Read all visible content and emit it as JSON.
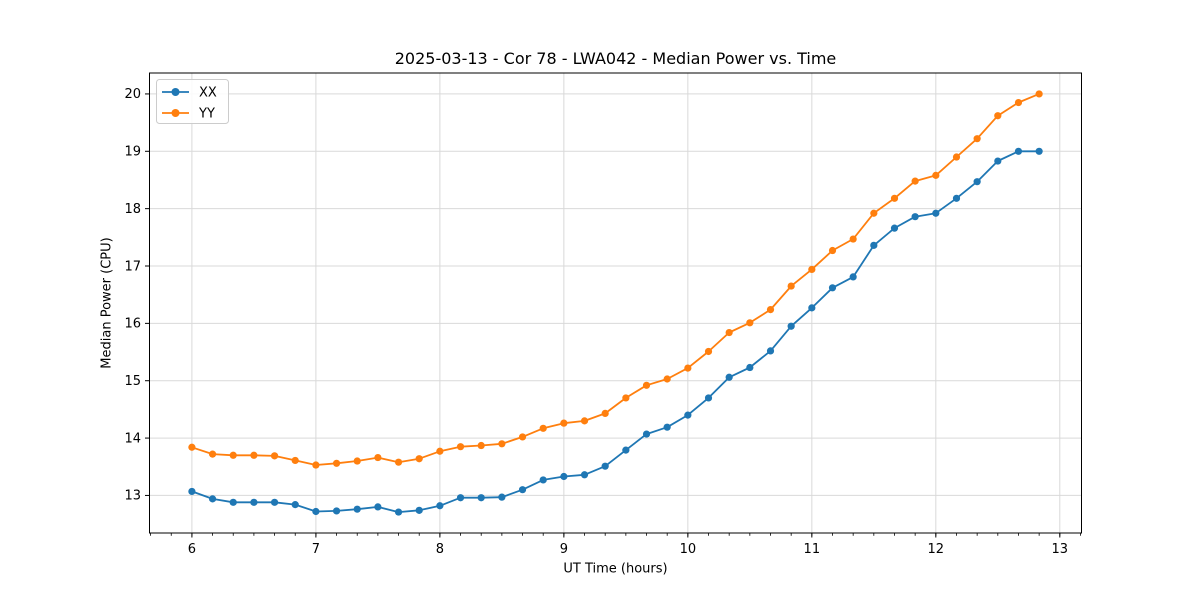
{
  "chart_data": {
    "type": "line",
    "title": "2025-03-13 - Cor 78 - LWA042 - Median Power vs. Time",
    "xlabel": "UT Time (hours)",
    "ylabel": "Median Power (CPU)",
    "xlim": [
      5.658,
      13.175
    ],
    "ylim": [
      12.345,
      20.365
    ],
    "xticks": [
      6,
      7,
      8,
      9,
      10,
      11,
      12,
      13
    ],
    "yticks": [
      13,
      14,
      15,
      16,
      17,
      18,
      19,
      20
    ],
    "x_minor_step": 0.166667,
    "grid": true,
    "legend_position": "upper-left",
    "x": [
      6.0,
      6.1667,
      6.3333,
      6.5,
      6.6667,
      6.8333,
      7.0,
      7.1667,
      7.3333,
      7.5,
      7.6667,
      7.8333,
      8.0,
      8.1667,
      8.3333,
      8.5,
      8.6667,
      8.8333,
      9.0,
      9.1667,
      9.3333,
      9.5,
      9.6667,
      9.8333,
      10.0,
      10.1667,
      10.3333,
      10.5,
      10.6667,
      10.8333,
      11.0,
      11.1667,
      11.3333,
      11.5,
      11.6667,
      11.8333,
      12.0,
      12.1667,
      12.3333,
      12.5,
      12.6667,
      12.8333
    ],
    "series": [
      {
        "name": "XX",
        "color": "#1f77b4",
        "marker": "circle",
        "values": [
          13.07,
          12.94,
          12.88,
          12.88,
          12.88,
          12.84,
          12.72,
          12.73,
          12.76,
          12.8,
          12.71,
          12.74,
          12.82,
          12.96,
          12.96,
          12.97,
          13.1,
          13.27,
          13.33,
          13.36,
          13.51,
          13.79,
          14.07,
          14.19,
          14.4,
          14.7,
          15.06,
          15.23,
          15.52,
          15.95,
          16.27,
          16.62,
          16.81,
          17.36,
          17.66,
          17.86,
          17.92,
          18.18,
          18.47,
          18.83,
          19.0,
          19.0
        ]
      },
      {
        "name": "YY",
        "color": "#ff7f0e",
        "marker": "circle",
        "values": [
          13.84,
          13.72,
          13.7,
          13.7,
          13.69,
          13.61,
          13.53,
          13.56,
          13.6,
          13.66,
          13.58,
          13.64,
          13.77,
          13.85,
          13.87,
          13.9,
          14.02,
          14.17,
          14.26,
          14.3,
          14.43,
          14.7,
          14.92,
          15.03,
          15.22,
          15.51,
          15.84,
          16.01,
          16.24,
          16.65,
          16.94,
          17.27,
          17.47,
          17.92,
          18.18,
          18.48,
          18.58,
          18.9,
          19.22,
          19.62,
          19.85,
          20.0
        ]
      }
    ],
    "colors": {
      "grid": "#d9d9d9",
      "spine": "#000000",
      "text": "#000000",
      "legend_border": "#cccccc",
      "legend_bg": "rgba(255,255,255,0.85)"
    }
  }
}
